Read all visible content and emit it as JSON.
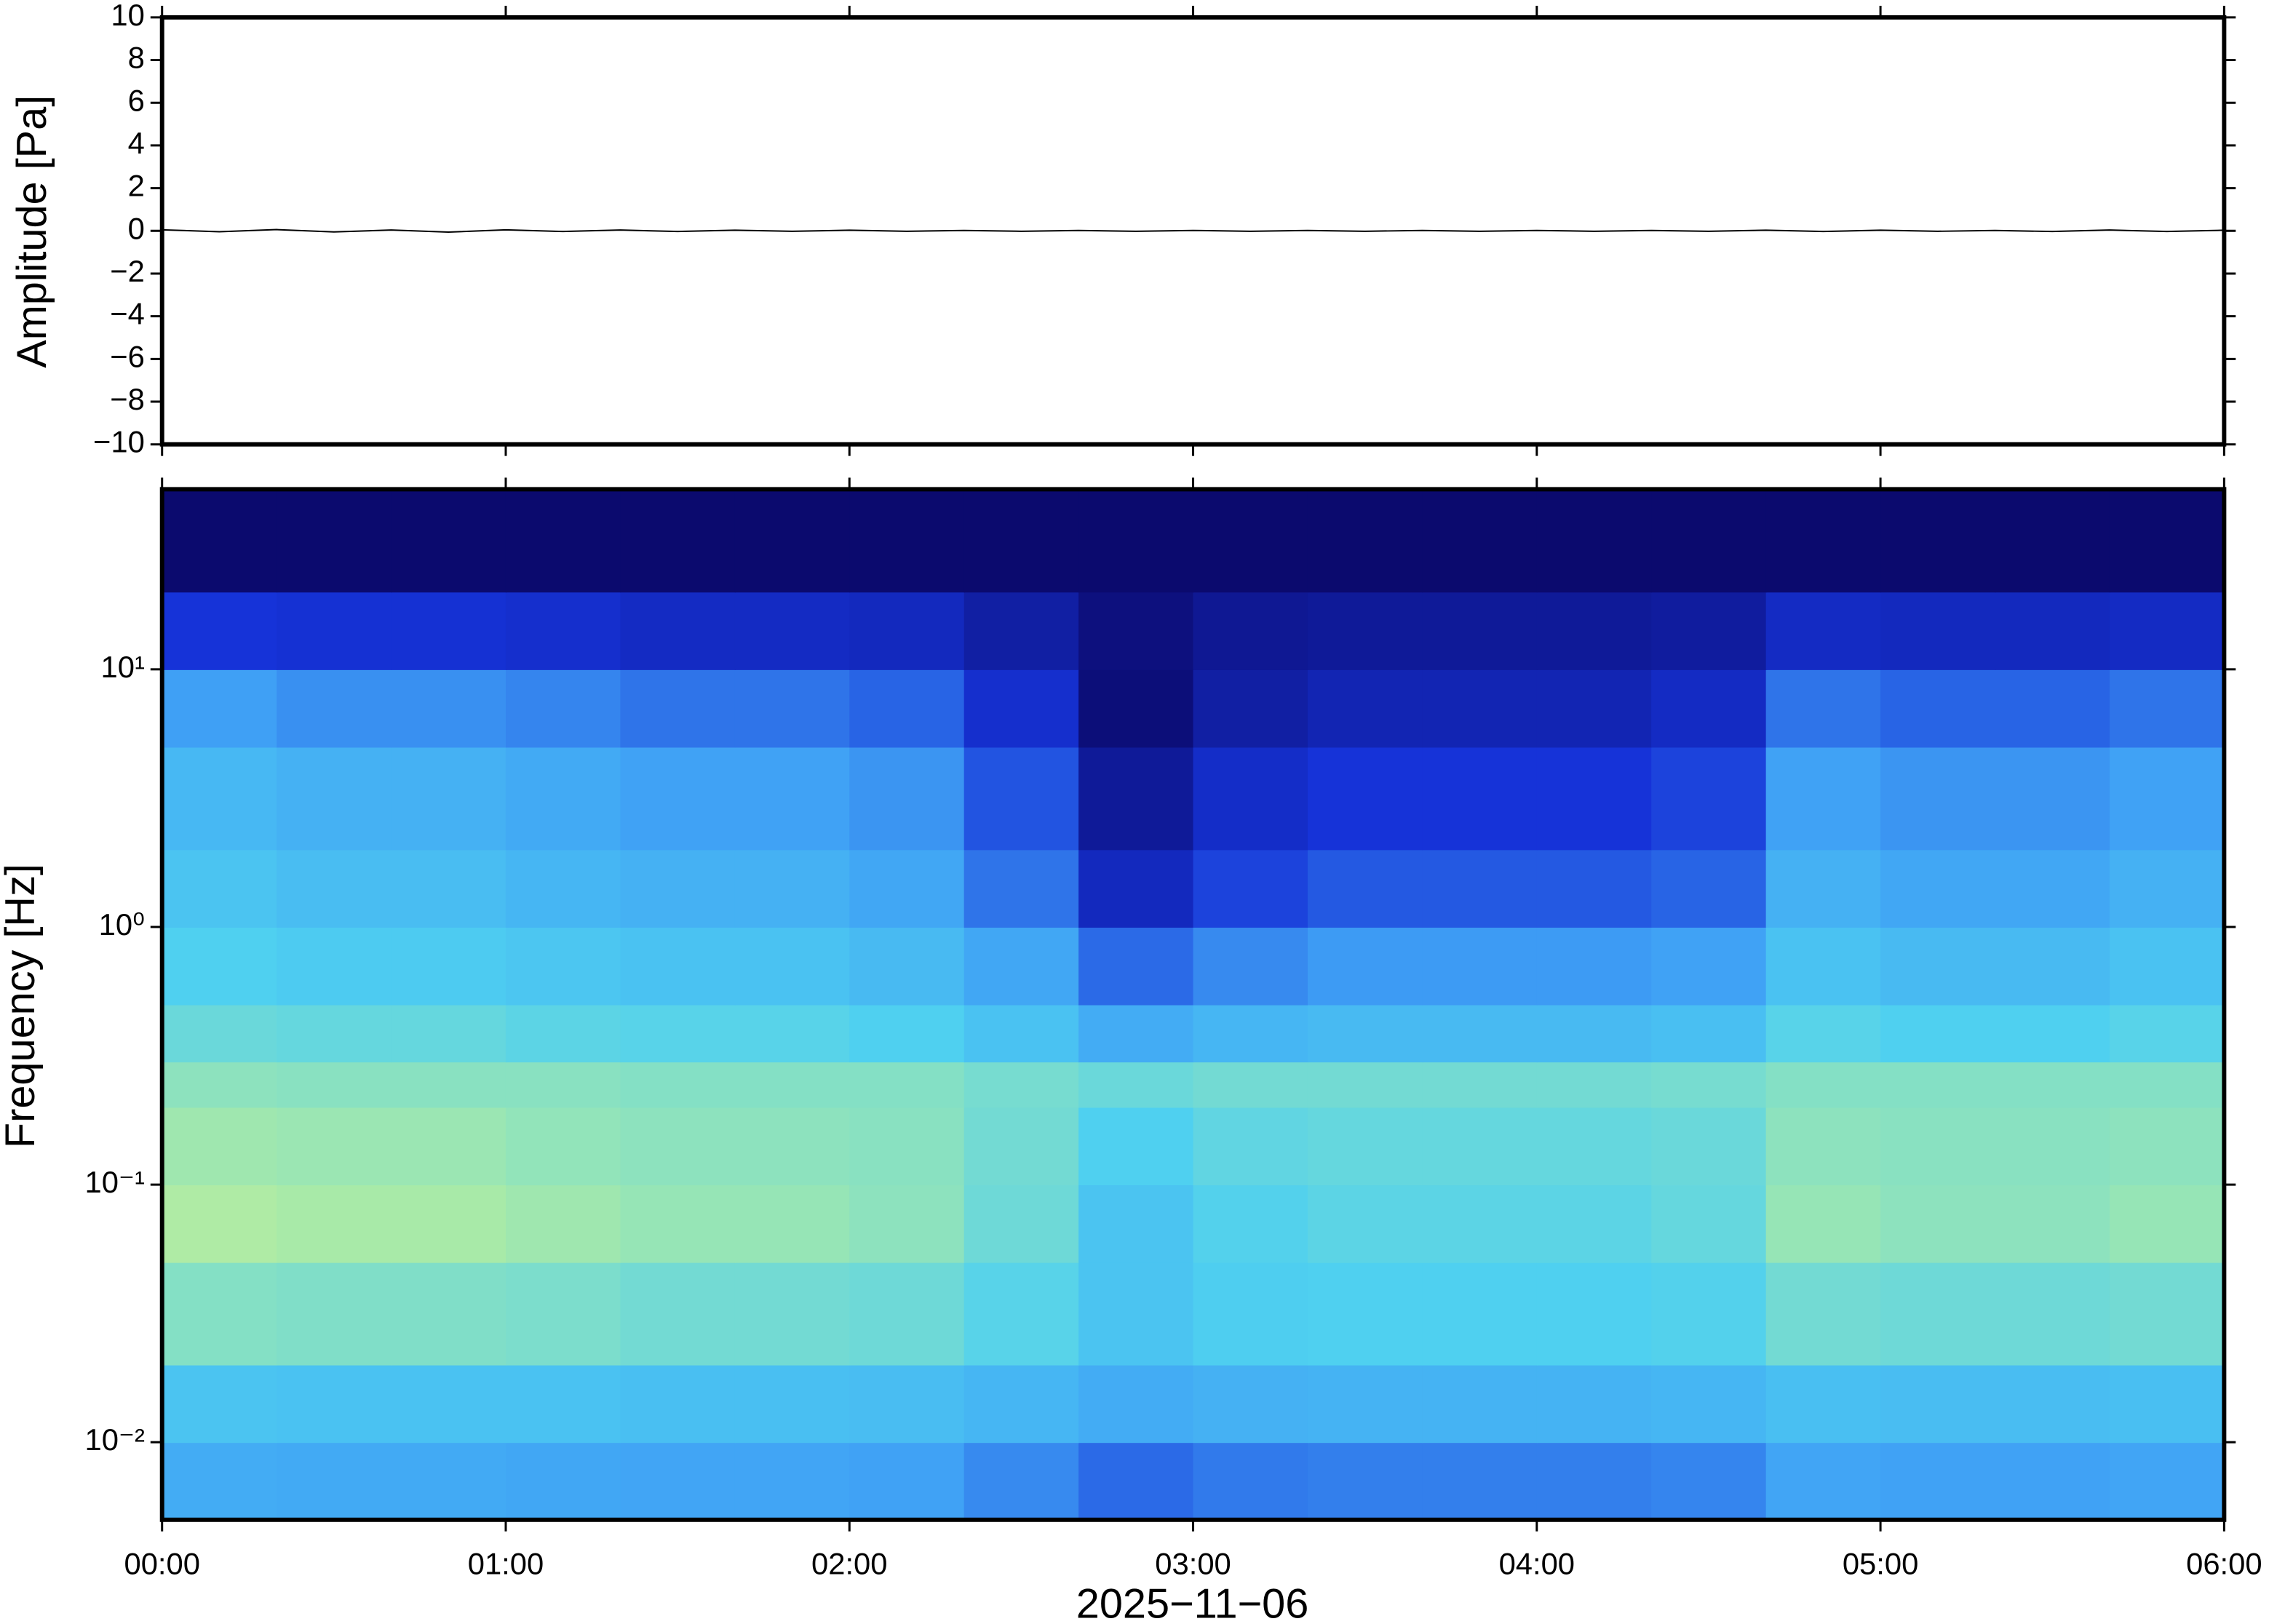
{
  "chart_data": [
    {
      "type": "line",
      "ylabel": "Amplitude [Pa]",
      "xlim": [
        0,
        360
      ],
      "xticks": [
        0,
        60,
        120,
        180,
        240,
        300,
        360
      ],
      "ylim": [
        -10,
        10
      ],
      "yticks": [
        {
          "value": -10,
          "label": "−10"
        },
        {
          "value": -8,
          "label": "−8"
        },
        {
          "value": -6,
          "label": "−6"
        },
        {
          "value": -4,
          "label": "−4"
        },
        {
          "value": -2,
          "label": "−2"
        },
        0,
        2,
        4,
        6,
        8,
        10
      ],
      "color": "#000000",
      "x": [
        0,
        10,
        20,
        30,
        40,
        50,
        60,
        70,
        80,
        90,
        100,
        110,
        120,
        130,
        140,
        150,
        160,
        170,
        180,
        190,
        200,
        210,
        220,
        230,
        240,
        250,
        260,
        270,
        280,
        290,
        300,
        310,
        320,
        330,
        340,
        350,
        360
      ],
      "values": [
        0.05,
        -0.04,
        0.06,
        -0.05,
        0.04,
        -0.06,
        0.05,
        -0.03,
        0.04,
        -0.03,
        0.03,
        -0.02,
        0.03,
        -0.02,
        0.02,
        -0.02,
        0.02,
        -0.02,
        0.02,
        -0.02,
        0.02,
        -0.02,
        0.02,
        -0.02,
        0.02,
        -0.02,
        0.02,
        -0.02,
        0.03,
        -0.03,
        0.03,
        -0.02,
        0.02,
        -0.03,
        0.04,
        -0.03,
        0.03
      ]
    },
    {
      "type": "heatmap",
      "ylabel": "Frequency [Hz]",
      "xlabel": "2025−11−06",
      "xlim": [
        0,
        360
      ],
      "xticks": [
        {
          "value": 0,
          "label": "00:00"
        },
        {
          "value": 60,
          "label": "01:00"
        },
        {
          "value": 120,
          "label": "02:00"
        },
        {
          "value": 180,
          "label": "03:00"
        },
        {
          "value": 240,
          "label": "04:00"
        },
        {
          "value": 300,
          "label": "05:00"
        },
        {
          "value": 360,
          "label": "06:00"
        }
      ],
      "ylim": [
        0.005,
        50
      ],
      "log_y": true,
      "yticks": [
        {
          "value": 0.01,
          "label": "10⁻²"
        },
        {
          "value": 0.1,
          "label": "10⁻¹"
        },
        {
          "value": 1,
          "label": "10⁰"
        },
        {
          "value": 10,
          "label": "10¹"
        }
      ],
      "colormap": [
        "#0b0a6e",
        "#1633d8",
        "#3fa0f5",
        "#4fd0f0",
        "#a8eaa8",
        "#f2f28a"
      ],
      "xbins": [
        0,
        20,
        40,
        60,
        80,
        100,
        120,
        140,
        160,
        180,
        200,
        220,
        240,
        260,
        280,
        300,
        320,
        340,
        360
      ],
      "ybins": [
        0.005,
        0.01,
        0.02,
        0.05,
        0.1,
        0.2,
        0.3,
        0.5,
        1,
        2,
        5,
        10,
        20,
        50
      ],
      "z": [
        [
          0.45,
          0.44,
          0.44,
          0.43,
          0.42,
          0.42,
          0.41,
          0.36,
          0.3,
          0.33,
          0.34,
          0.34,
          0.34,
          0.35,
          0.42,
          0.41,
          0.41,
          0.42
        ],
        [
          0.55,
          0.54,
          0.54,
          0.54,
          0.53,
          0.53,
          0.52,
          0.49,
          0.45,
          0.47,
          0.48,
          0.48,
          0.48,
          0.49,
          0.53,
          0.52,
          0.52,
          0.53
        ],
        [
          0.72,
          0.71,
          0.71,
          0.7,
          0.68,
          0.68,
          0.67,
          0.62,
          0.55,
          0.59,
          0.6,
          0.6,
          0.6,
          0.61,
          0.68,
          0.67,
          0.67,
          0.68
        ],
        [
          0.82,
          0.8,
          0.8,
          0.78,
          0.76,
          0.76,
          0.74,
          0.67,
          0.55,
          0.61,
          0.63,
          0.63,
          0.63,
          0.65,
          0.76,
          0.74,
          0.74,
          0.76
        ],
        [
          0.78,
          0.77,
          0.77,
          0.75,
          0.74,
          0.74,
          0.73,
          0.68,
          0.6,
          0.64,
          0.65,
          0.65,
          0.65,
          0.66,
          0.74,
          0.73,
          0.73,
          0.74
        ],
        [
          0.74,
          0.73,
          0.73,
          0.73,
          0.72,
          0.72,
          0.72,
          0.69,
          0.66,
          0.68,
          0.68,
          0.68,
          0.68,
          0.69,
          0.72,
          0.72,
          0.72,
          0.72
        ],
        [
          0.66,
          0.65,
          0.65,
          0.63,
          0.62,
          0.62,
          0.6,
          0.54,
          0.45,
          0.49,
          0.51,
          0.51,
          0.51,
          0.53,
          0.62,
          0.6,
          0.6,
          0.62
        ],
        [
          0.6,
          0.58,
          0.58,
          0.56,
          0.54,
          0.54,
          0.51,
          0.43,
          0.3,
          0.36,
          0.39,
          0.39,
          0.39,
          0.41,
          0.54,
          0.51,
          0.51,
          0.54
        ],
        [
          0.55,
          0.52,
          0.52,
          0.49,
          0.47,
          0.47,
          0.43,
          0.32,
          0.15,
          0.23,
          0.27,
          0.27,
          0.27,
          0.29,
          0.47,
          0.43,
          0.43,
          0.47
        ],
        [
          0.5,
          0.47,
          0.47,
          0.44,
          0.41,
          0.41,
          0.38,
          0.26,
          0.08,
          0.17,
          0.2,
          0.2,
          0.2,
          0.23,
          0.41,
          0.38,
          0.38,
          0.41
        ],
        [
          0.4,
          0.37,
          0.37,
          0.35,
          0.32,
          0.32,
          0.29,
          0.18,
          0.02,
          0.1,
          0.13,
          0.13,
          0.13,
          0.16,
          0.32,
          0.29,
          0.29,
          0.32
        ],
        [
          0.2,
          0.19,
          0.19,
          0.18,
          0.16,
          0.16,
          0.15,
          0.1,
          0.03,
          0.07,
          0.08,
          0.08,
          0.08,
          0.09,
          0.16,
          0.15,
          0.15,
          0.16
        ],
        [
          0,
          0,
          0,
          0,
          0,
          0,
          0,
          0,
          0,
          0,
          0,
          0,
          0,
          0,
          0,
          0,
          0,
          0
        ]
      ]
    }
  ]
}
